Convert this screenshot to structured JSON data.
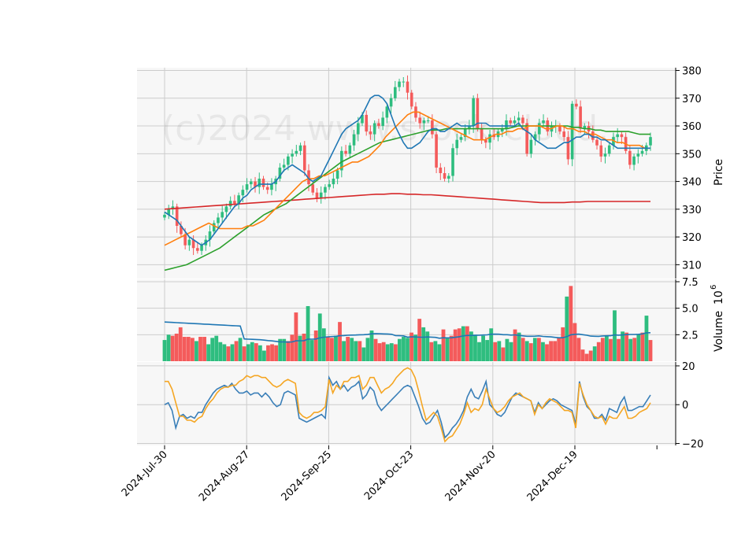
{
  "chart_data": {
    "type": "candlestick",
    "watermark": "(c)2024 www.stock-cloud...",
    "x_ticks": [
      "2024-Jul-30",
      "2024-Aug-27",
      "2024-Sep-25",
      "2024-Oct-23",
      "2024-Nov-20",
      "2024-Dec-19"
    ],
    "price_panel": {
      "ylabel": "Price",
      "ylim": [
        305,
        381
      ],
      "yticks": [
        310,
        320,
        330,
        340,
        350,
        360,
        370,
        380
      ],
      "close": [
        328,
        330,
        331,
        324,
        321,
        317,
        319,
        316,
        315,
        317,
        319,
        322,
        325,
        327,
        329,
        331,
        333,
        332,
        335,
        337,
        339,
        340,
        338,
        341,
        338,
        337,
        339,
        341,
        345,
        346,
        349,
        350,
        351,
        353,
        344,
        339,
        336,
        334,
        336,
        338,
        339,
        341,
        344,
        351,
        350,
        353,
        357,
        361,
        364,
        358,
        357,
        361,
        360,
        363,
        367,
        370,
        374,
        376,
        376,
        372,
        367,
        363,
        361,
        362,
        362,
        357,
        345,
        343,
        341,
        342,
        352,
        355,
        356,
        359,
        360,
        370,
        359,
        355,
        354,
        357,
        356,
        358,
        359,
        362,
        361,
        362,
        363,
        361,
        350,
        355,
        357,
        361,
        362,
        358,
        360,
        360,
        358,
        356,
        348,
        368,
        367,
        359,
        360,
        358,
        355,
        353,
        349,
        350,
        353,
        356,
        357,
        356,
        351,
        346,
        349,
        350,
        351,
        353,
        356
      ],
      "ma5": [
        329,
        328,
        327,
        326,
        324,
        322,
        320,
        319,
        318,
        317,
        318,
        319,
        321,
        323,
        325,
        327,
        329,
        331,
        332,
        334,
        335,
        337,
        338,
        339,
        339,
        339,
        339,
        340,
        342,
        344,
        345,
        346,
        345,
        344,
        343,
        341,
        340,
        341,
        342,
        345,
        348,
        351,
        354,
        357,
        359,
        360,
        361,
        362,
        364,
        367,
        370,
        371,
        371,
        370,
        368,
        364,
        360,
        357,
        354,
        352,
        352,
        353,
        354,
        356,
        358,
        359,
        359,
        358,
        358,
        359,
        360,
        361,
        360,
        360,
        360,
        360,
        361,
        361,
        361,
        360,
        360,
        360,
        360,
        360,
        360,
        360,
        361,
        359,
        358,
        357,
        355,
        354,
        353,
        352,
        352,
        352,
        353,
        354,
        354,
        355,
        356,
        356,
        357,
        357,
        356,
        356,
        355,
        355,
        354,
        353,
        352,
        352,
        352,
        352,
        352,
        352,
        352,
        352,
        352
      ],
      "ma25": [
        317,
        318,
        319,
        320,
        321,
        322,
        323,
        324,
        325,
        324,
        323,
        323,
        323,
        323,
        323,
        324,
        324,
        325,
        326,
        328,
        330,
        332,
        334,
        336,
        338,
        340,
        341,
        341,
        342,
        342,
        343,
        344,
        345,
        346,
        347,
        347,
        348,
        349,
        351,
        353,
        356,
        358,
        360,
        362,
        364,
        365,
        365,
        364,
        363,
        362,
        361,
        360,
        359,
        358,
        357,
        356,
        355,
        355,
        355,
        356,
        357,
        357,
        358,
        358,
        359,
        359,
        360,
        360,
        360,
        359,
        359,
        360,
        360,
        359,
        359,
        358,
        358,
        357,
        357,
        356,
        355,
        355,
        354,
        354,
        353,
        353,
        353,
        352,
        352
      ],
      "ma75": [
        308,
        308.5,
        309,
        309.5,
        310,
        311,
        312,
        313,
        314,
        315,
        316,
        317.5,
        319,
        320.5,
        322,
        323.5,
        325,
        326.5,
        328,
        329,
        330,
        331,
        332,
        333.5,
        335,
        336.5,
        338,
        339.5,
        341,
        342.5,
        344,
        345.5,
        347,
        348,
        349,
        350,
        351,
        352,
        353,
        354,
        354.5,
        355,
        355.5,
        356,
        356.5,
        357,
        357.5,
        358,
        358.5,
        358.5,
        358.5,
        359,
        359,
        359,
        359,
        359,
        359,
        359,
        359,
        359,
        359,
        359,
        359,
        359.5,
        360,
        360,
        360,
        360,
        360,
        360,
        360,
        360,
        360,
        360,
        359.5,
        359.5,
        359,
        359,
        358.5,
        358.5,
        358,
        358,
        358,
        358,
        358,
        357.5,
        357,
        357,
        357
      ],
      "ma200": [
        330,
        330.2,
        330.4,
        330.6,
        330.8,
        331,
        331.2,
        331.4,
        331.6,
        331.8,
        332,
        332.2,
        332.4,
        332.6,
        332.8,
        333,
        333.2,
        333.4,
        333.6,
        333.8,
        334,
        334.2,
        334.4,
        334.6,
        334.8,
        335,
        335.2,
        335.4,
        335.4,
        335.6,
        335.6,
        335.4,
        335.4,
        335.2,
        335.2,
        335,
        334.8,
        334.6,
        334.4,
        334.2,
        334,
        333.8,
        333.6,
        333.4,
        333.2,
        333,
        332.8,
        332.6,
        332.4,
        332.4,
        332.4,
        332.4,
        332.6,
        332.6,
        332.8,
        332.8,
        332.8,
        332.8,
        332.8,
        332.8,
        332.8,
        332.8,
        332.8
      ]
    },
    "volume_panel": {
      "ylabel": "Volume",
      "ylabel_exponent": "6",
      "ylim": [
        0,
        7.5
      ],
      "yticks": [
        "2.5",
        "5.0",
        "7.5"
      ],
      "volumes": [
        2.0,
        2.5,
        2.4,
        2.6,
        3.2,
        2.3,
        2.3,
        2.2,
        1.9,
        2.3,
        2.3,
        1.6,
        2.2,
        2.4,
        1.8,
        1.6,
        1.4,
        1.6,
        1.9,
        2.2,
        1.4,
        1.6,
        1.8,
        1.7,
        1.5,
        1.0,
        1.5,
        1.6,
        1.5,
        2.1,
        2.1,
        1.9,
        2.5,
        4.6,
        2.4,
        2.6,
        5.2,
        2.0,
        2.9,
        4.5,
        3.1,
        2.3,
        2.2,
        2.4,
        3.7,
        1.9,
        2.3,
        2.2,
        1.9,
        1.9,
        1.3,
        2.2,
        2.9,
        2.1,
        1.7,
        1.8,
        1.6,
        1.7,
        1.6,
        2.1,
        2.3,
        2.2,
        2.7,
        2.5,
        4.0,
        3.2,
        2.8,
        1.8,
        1.9,
        1.6,
        3.0,
        2.2,
        2.4,
        3.0,
        3.1,
        3.3,
        3.3,
        2.8,
        2.5,
        1.8,
        2.4,
        2.0,
        3.1,
        1.8,
        1.9,
        1.3,
        2.1,
        1.8,
        3.0,
        2.7,
        2.2,
        1.9,
        1.7,
        2.2,
        2.2,
        1.8,
        1.6,
        1.9,
        1.9,
        2.2,
        3.2,
        6.1,
        7.1,
        3.6,
        2.2,
        1.1,
        0.7,
        1.0,
        1.4,
        1.8,
        2.2,
        2.4,
        2.1,
        4.8,
        2.1,
        2.8,
        2.7,
        2.1,
        2.2,
        2.5,
        2.7,
        4.3,
        2.0
      ],
      "up_down": "GGRRRRRRGRRGGGGGRGRGRGGRGGRRRGGRRRGRGGRGGRRGRGRGGRGGGRRRGGRGGGRGRGGRGGRGRRRGRGGGGGGRGRGGRGRGRGRGRRRRRGRRRRRRGRRGRGRGRGRGRGRG"
    },
    "oscillator_panel": {
      "ylim": [
        -21,
        22
      ],
      "yticks": [
        -20,
        0,
        20
      ],
      "line1": [
        0,
        1,
        -3,
        -12,
        -6,
        -5,
        -7,
        -6,
        -7,
        -4,
        -4,
        0,
        3,
        6,
        8,
        9,
        10,
        9,
        11,
        8,
        6,
        6,
        7,
        5,
        6,
        6,
        4,
        6,
        4,
        1,
        -1,
        0,
        6,
        7,
        6,
        5,
        -7,
        -8,
        -9,
        -8,
        -7,
        -6,
        -5,
        -7,
        14,
        10,
        12,
        8,
        10,
        7,
        9,
        10,
        12,
        3,
        5,
        9,
        7,
        0,
        -3,
        -1,
        1,
        3,
        5,
        7,
        9,
        10,
        9,
        4,
        -1,
        -7,
        -10,
        -9,
        -6,
        -3,
        -9,
        -17,
        -15,
        -12,
        -10,
        -7,
        -3,
        4,
        8,
        4,
        3,
        7,
        12,
        0,
        -2,
        -5,
        -6,
        -4,
        0,
        4,
        6,
        5,
        4,
        3,
        2,
        -4,
        1,
        -2,
        0,
        2,
        3,
        2,
        0,
        -1,
        -2,
        -3,
        -10,
        12,
        4,
        -1,
        -3,
        -7,
        -7,
        -5,
        -8,
        -2,
        -3,
        -4,
        1,
        4,
        -3,
        -3,
        -2,
        -1,
        -1,
        2,
        5
      ],
      "line2": [
        12,
        12,
        8,
        1,
        -6,
        -6,
        -8,
        -8,
        -9,
        -7,
        -6,
        -2,
        1,
        3,
        6,
        8,
        9,
        9,
        10,
        10,
        12,
        13,
        15,
        14,
        15,
        15,
        14,
        14,
        12,
        10,
        9,
        10,
        12,
        13,
        12,
        11,
        -4,
        -6,
        -7,
        -6,
        -4,
        -4,
        -3,
        -1,
        13,
        6,
        10,
        8,
        12,
        12,
        14,
        14,
        15,
        8,
        10,
        14,
        14,
        10,
        6,
        8,
        9,
        11,
        14,
        16,
        18,
        19,
        18,
        14,
        7,
        -1,
        -8,
        -6,
        -4,
        -6,
        -12,
        -19,
        -17,
        -16,
        -13,
        -10,
        -5,
        1,
        -4,
        -2,
        -3,
        0,
        8,
        3,
        -2,
        -4,
        -3,
        -1,
        2,
        4,
        5,
        6,
        4,
        3,
        2,
        -5,
        0,
        -2,
        1,
        3,
        2,
        1,
        -1,
        -3,
        -3,
        -4,
        -12,
        11,
        5,
        0,
        -3,
        -6,
        -7,
        -6,
        -10,
        -6,
        -7,
        -7,
        -4,
        -1,
        -7,
        -7,
        -6,
        -4,
        -3,
        -2,
        1
      ]
    },
    "colors": {
      "up": "#2ebd7f",
      "down": "#f45b5b",
      "ma5": "#1f77b4",
      "ma25": "#ff7f0e",
      "ma75": "#2ca02c",
      "ma200": "#d62728",
      "volume_ma": "#1f77b4",
      "osc1": "#3a7fb8",
      "osc2": "#f5a623",
      "panel_bg": "#f7f7f7",
      "grid": "#cccccc"
    },
    "grid": true
  }
}
